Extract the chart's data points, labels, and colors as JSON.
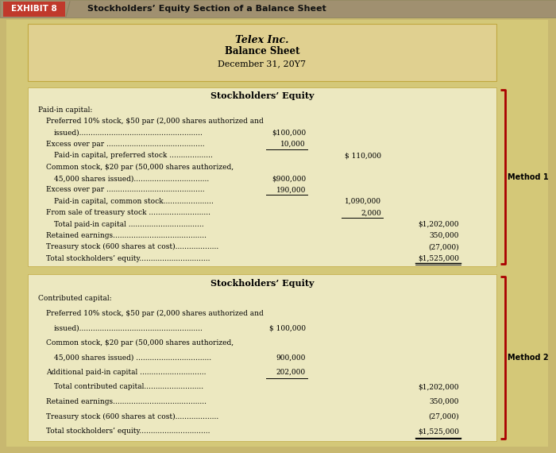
{
  "exhibit_label": "EXHIBIT 8",
  "exhibit_title": "Stockholders’ Equity Section of a Balance Sheet",
  "title_line1": "Telex Inc.",
  "title_line2": "Balance Sheet",
  "title_line3": "December 31, 20Y7",
  "method1_label": "Method 1",
  "method2_label": "Method 2",
  "section1_header": "Stockholders’ Equity",
  "section1_rows": [
    {
      "indent": 0,
      "text": "Paid-in capital:",
      "col1": "",
      "col2": "",
      "col3": ""
    },
    {
      "indent": 1,
      "text": "Preferred 10% stock, $50 par (2,000 shares authorized and",
      "col1": "",
      "col2": "",
      "col3": ""
    },
    {
      "indent": 2,
      "text": "issued)......................................................",
      "col1": "$100,000",
      "col2": "",
      "col3": ""
    },
    {
      "indent": 1,
      "text": "Excess over par ...........................................",
      "col1": "10,000",
      "col2": "",
      "col3": "",
      "ul1": true
    },
    {
      "indent": 2,
      "text": "Paid-in capital, preferred stock ...................",
      "col1": "",
      "col2": "$ 110,000",
      "col3": ""
    },
    {
      "indent": 1,
      "text": "Common stock, $20 par (50,000 shares authorized,",
      "col1": "",
      "col2": "",
      "col3": ""
    },
    {
      "indent": 2,
      "text": "45,000 shares issued).................................",
      "col1": "$900,000",
      "col2": "",
      "col3": ""
    },
    {
      "indent": 1,
      "text": "Excess over par ...........................................",
      "col1": "190,000",
      "col2": "",
      "col3": "",
      "ul1": true
    },
    {
      "indent": 2,
      "text": "Paid-in capital, common stock......................",
      "col1": "",
      "col2": "1,090,000",
      "col3": ""
    },
    {
      "indent": 1,
      "text": "From sale of treasury stock ...........................",
      "col1": "",
      "col2": "2,000",
      "col3": "",
      "ul2": true
    },
    {
      "indent": 2,
      "text": "Total paid-in capital .................................",
      "col1": "",
      "col2": "",
      "col3": "$1,202,000"
    },
    {
      "indent": 1,
      "text": "Retained earnings.........................................",
      "col1": "",
      "col2": "",
      "col3": "350,000"
    },
    {
      "indent": 1,
      "text": "Treasury stock (600 shares at cost)...................",
      "col1": "",
      "col2": "",
      "col3": "(27,000)"
    },
    {
      "indent": 1,
      "text": "Total stockholders’ equity...............................",
      "col1": "",
      "col2": "",
      "col3": "$1,525,000",
      "ul3": true
    }
  ],
  "section2_header": "Stockholders’ Equity",
  "section2_rows": [
    {
      "indent": 0,
      "text": "Contributed capital:",
      "col1": "",
      "col2": "",
      "col3": ""
    },
    {
      "indent": 1,
      "text": "Preferred 10% stock, $50 par (2,000 shares authorized and",
      "col1": "",
      "col2": "",
      "col3": ""
    },
    {
      "indent": 2,
      "text": "issued)......................................................",
      "col1": "$ 100,000",
      "col2": "",
      "col3": ""
    },
    {
      "indent": 1,
      "text": "Common stock, $20 par (50,000 shares authorized,",
      "col1": "",
      "col2": "",
      "col3": ""
    },
    {
      "indent": 2,
      "text": "45,000 shares issued) .................................",
      "col1": "900,000",
      "col2": "",
      "col3": ""
    },
    {
      "indent": 1,
      "text": "Additional paid-in capital .............................",
      "col1": "202,000",
      "col2": "",
      "col3": "",
      "ul1": true
    },
    {
      "indent": 2,
      "text": "Total contributed capital..........................",
      "col1": "",
      "col2": "",
      "col3": "$1,202,000"
    },
    {
      "indent": 1,
      "text": "Retained earnings.........................................",
      "col1": "",
      "col2": "",
      "col3": "350,000"
    },
    {
      "indent": 1,
      "text": "Treasury stock (600 shares at cost)...................",
      "col1": "",
      "col2": "",
      "col3": "(27,000)"
    },
    {
      "indent": 1,
      "text": "Total stockholders’ equity...............................",
      "col1": "",
      "col2": "",
      "col3": "$1,525,000",
      "ul3": true
    }
  ],
  "colors": {
    "header_bar_bg": "#a09070",
    "exhibit_box_bg": "#c0392b",
    "outer_bg": "#c8b870",
    "inner_bg": "#d4c878",
    "title_box_bg": "#e0d090",
    "section_box_bg": "#ece8c0",
    "bracket_red": "#aa0000",
    "text_black": "#1a1a1a",
    "header_text": "#f0f0f0"
  },
  "layout": {
    "fig_w": 7.0,
    "fig_h": 5.7,
    "dpi": 100
  }
}
